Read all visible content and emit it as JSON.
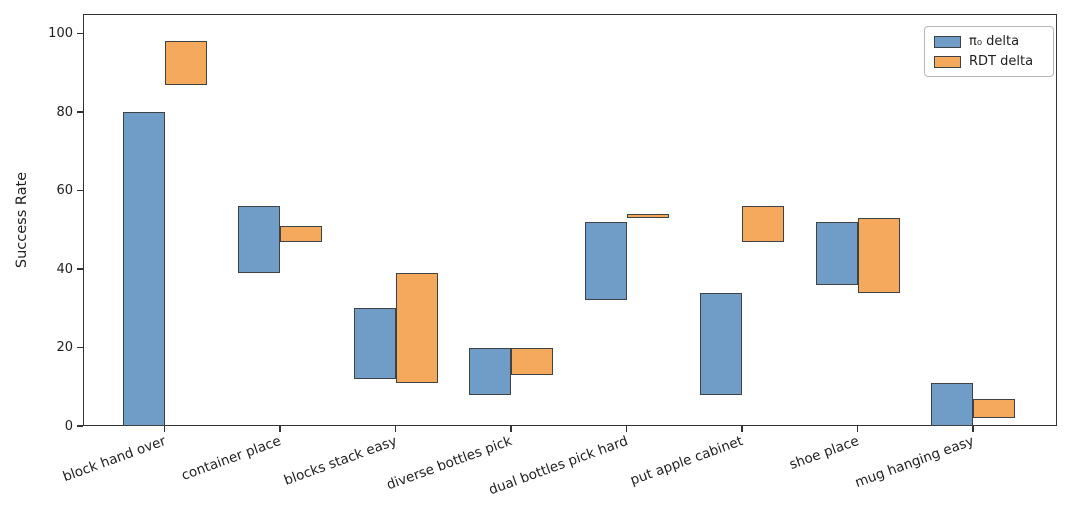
{
  "figure": {
    "background": "#ffffff"
  },
  "chart_data": {
    "type": "bar",
    "subtype": "floating-range-bars",
    "title": "",
    "xlabel": "",
    "ylabel": "Success Rate",
    "categories": [
      "block hand over",
      "container place",
      "blocks stack easy",
      "diverse bottles pick",
      "dual bottles pick hard",
      "put apple cabinet",
      "shoe place",
      "mug hanging easy"
    ],
    "yticks": [
      0,
      20,
      40,
      60,
      80,
      100
    ],
    "ylim": [
      0,
      105
    ],
    "grid": false,
    "legend_position": "upper right",
    "axis_color": "#333333",
    "text_color": "#1f1f1f",
    "bar_edge_color": "#3f4245",
    "series": [
      {
        "name": "π₀ delta",
        "color": "#6f9dc8",
        "ranges": [
          [
            0,
            80
          ],
          [
            39,
            56
          ],
          [
            12,
            30
          ],
          [
            8,
            20
          ],
          [
            32,
            52
          ],
          [
            8,
            34
          ],
          [
            36,
            52
          ],
          [
            0,
            11
          ]
        ]
      },
      {
        "name": "RDT delta",
        "color": "#f5a95d",
        "ranges": [
          [
            87,
            98
          ],
          [
            47,
            51
          ],
          [
            11,
            39
          ],
          [
            13,
            20
          ],
          [
            53,
            54
          ],
          [
            47,
            56
          ],
          [
            34,
            53
          ],
          [
            2,
            7
          ]
        ]
      }
    ]
  }
}
